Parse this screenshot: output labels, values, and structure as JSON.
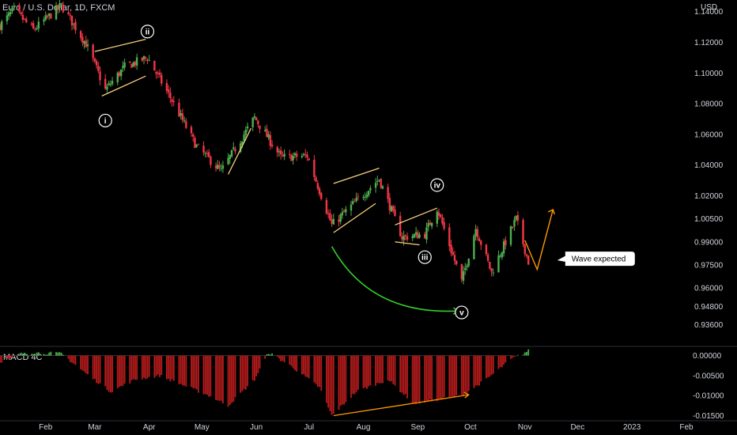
{
  "header": {
    "title": "Euro / U.S. Dollar, 1D, FXCM",
    "currency": "USD",
    "macd_label": "MACD 4C"
  },
  "colors": {
    "background": "#000000",
    "up": "#4caf50",
    "down": "#f23645",
    "pattern_lines": "#f9d27a",
    "projection": "#ff9800",
    "arc": "#33d02a",
    "macd_pos": "#4caf50",
    "macd_neg": "#b71c1c",
    "text": "#d1d4dc"
  },
  "chart_data": [
    {
      "type": "candlestick",
      "symbol": "Euro / U.S. Dollar",
      "timeframe": "1D",
      "source": "FXCM",
      "ylabel": "USD",
      "ylim": [
        0.926,
        1.146
      ],
      "y_ticks": [
        "1.14000",
        "1.12000",
        "1.10000",
        "1.08000",
        "1.06000",
        "1.04000",
        "1.02000",
        "1.00500",
        "0.99000",
        "0.97500",
        "0.96000",
        "0.94800",
        "0.93600"
      ],
      "x_ticks": [
        "Feb",
        "Mar",
        "Apr",
        "May",
        "Jun",
        "Jul",
        "Aug",
        "Sep",
        "Oct",
        "Nov",
        "Dec",
        "2023",
        "Feb"
      ],
      "close_path": [
        [
          "2022-01-06",
          1.131
        ],
        [
          "2022-01-14",
          1.141
        ],
        [
          "2022-01-25",
          1.128
        ],
        [
          "2022-02-10",
          1.144
        ],
        [
          "2022-02-24",
          1.119
        ],
        [
          "2022-03-07",
          1.089
        ],
        [
          "2022-03-18",
          1.104
        ],
        [
          "2022-03-31",
          1.11
        ],
        [
          "2022-04-14",
          1.082
        ],
        [
          "2022-04-28",
          1.052
        ],
        [
          "2022-05-12",
          1.036
        ],
        [
          "2022-05-31",
          1.071
        ],
        [
          "2022-06-15",
          1.045
        ],
        [
          "2022-06-30",
          1.046
        ],
        [
          "2022-07-14",
          1.001
        ],
        [
          "2022-08-10",
          1.031
        ],
        [
          "2022-08-23",
          0.993
        ],
        [
          "2022-09-05",
          0.995
        ],
        [
          "2022-09-12",
          1.012
        ],
        [
          "2022-09-26",
          0.964
        ],
        [
          "2022-10-04",
          0.999
        ],
        [
          "2022-10-13",
          0.97
        ],
        [
          "2022-10-27",
          1.005
        ],
        [
          "2022-11-03",
          0.977
        ]
      ],
      "wave_labels": [
        {
          "label": "i",
          "date": "2022-03-07",
          "price": 1.069
        },
        {
          "label": "ii",
          "date": "2022-03-31",
          "price": 1.127
        },
        {
          "label": "iii",
          "date": "2022-09-05",
          "price": 0.98
        },
        {
          "label": "iv",
          "date": "2022-09-12",
          "price": 1.027
        },
        {
          "label": "v",
          "date": "2022-09-26",
          "price": 0.944
        }
      ],
      "annotations": [
        {
          "text": "Wave expected",
          "date": "2022-11-24",
          "price": 0.979
        }
      ]
    },
    {
      "type": "bar",
      "name": "MACD 4C",
      "ylim": [
        -0.0155,
        0.0015
      ],
      "y_ticks": [
        "0.00000",
        "-0.00500",
        "-0.01000",
        "-0.01500"
      ],
      "histogram_path": [
        [
          "2022-01-06",
          -0.002
        ],
        [
          "2022-01-20",
          0.0008
        ],
        [
          "2022-02-10",
          0.0005
        ],
        [
          "2022-02-24",
          -0.0045
        ],
        [
          "2022-03-10",
          -0.009
        ],
        [
          "2022-03-24",
          -0.006
        ],
        [
          "2022-04-07",
          -0.005
        ],
        [
          "2022-04-21",
          -0.0075
        ],
        [
          "2022-05-05",
          -0.01
        ],
        [
          "2022-05-16",
          -0.0125
        ],
        [
          "2022-05-31",
          -0.006
        ],
        [
          "2022-06-08",
          0.0008
        ],
        [
          "2022-06-22",
          -0.003
        ],
        [
          "2022-07-07",
          -0.008
        ],
        [
          "2022-07-14",
          -0.015
        ],
        [
          "2022-07-28",
          -0.009
        ],
        [
          "2022-08-15",
          -0.006
        ],
        [
          "2022-08-30",
          -0.012
        ],
        [
          "2022-09-26",
          -0.01
        ],
        [
          "2022-10-10",
          -0.006
        ],
        [
          "2022-10-24",
          -0.001
        ],
        [
          "2022-11-03",
          0.0012
        ]
      ]
    }
  ]
}
